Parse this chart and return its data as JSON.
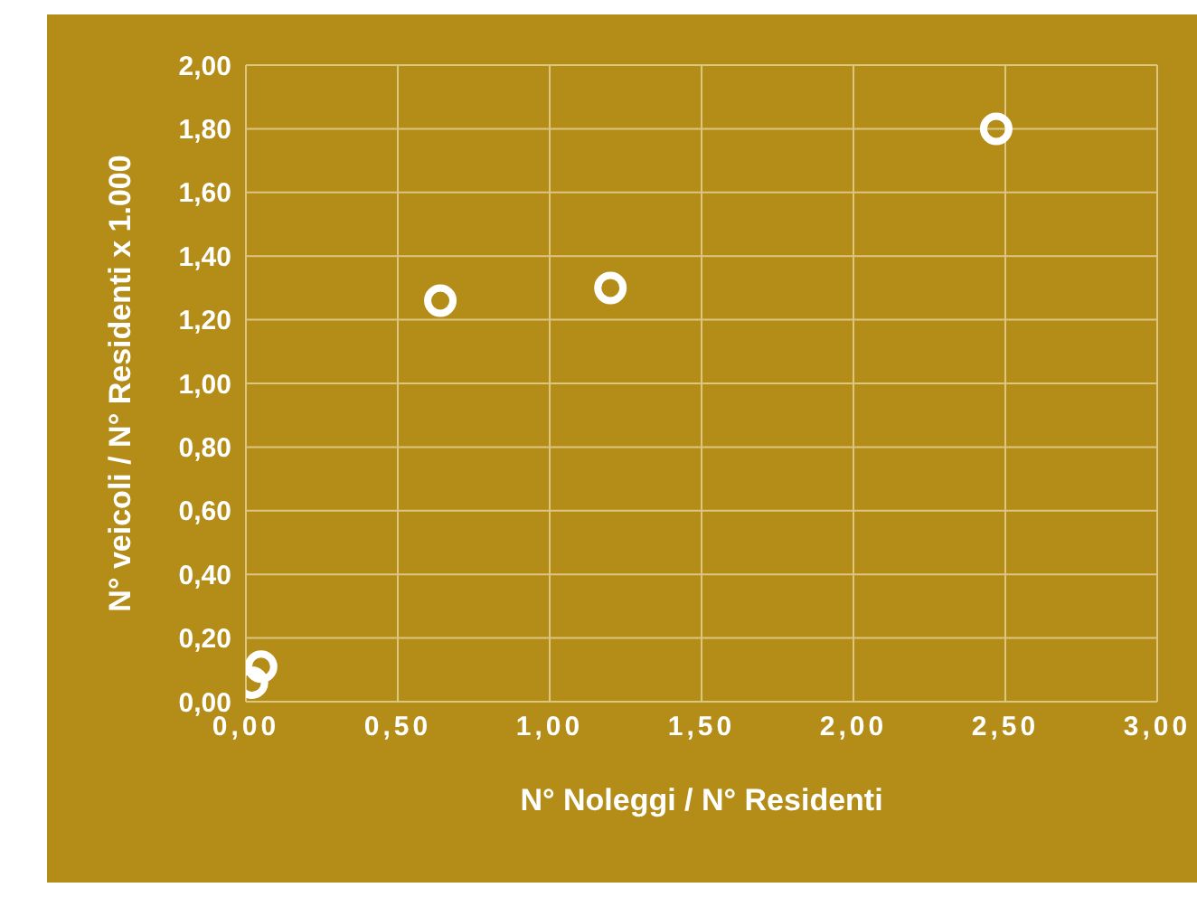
{
  "chart_data": {
    "type": "scatter",
    "xlabel": "N° Noleggi / N° Residenti",
    "ylabel": "N° veicoli / N° Residenti x 1.000",
    "x": [
      0.02,
      0.05,
      0.64,
      1.2,
      2.47
    ],
    "series": [
      {
        "color": "#ffffff",
        "values": [
          0.06,
          0.11,
          1.26,
          1.3,
          1.8
        ]
      }
    ],
    "xlim": [
      0,
      3
    ],
    "ylim": [
      0,
      2
    ],
    "xticks": [
      {
        "value": 0,
        "label": "0,00"
      },
      {
        "value": 0.5,
        "label": "0,50"
      },
      {
        "value": 1,
        "label": "1,00"
      },
      {
        "value": 1.5,
        "label": "1,50"
      },
      {
        "value": 2,
        "label": "2,00"
      },
      {
        "value": 2.5,
        "label": "2,50"
      },
      {
        "value": 3,
        "label": "3,00"
      }
    ],
    "yticks": [
      {
        "value": 0,
        "label": "0,00"
      },
      {
        "value": 0.2,
        "label": "0,20"
      },
      {
        "value": 0.4,
        "label": "0,40"
      },
      {
        "value": 0.6,
        "label": "0,60"
      },
      {
        "value": 0.8,
        "label": "0,80"
      },
      {
        "value": 1,
        "label": "1,00"
      },
      {
        "value": 1.2,
        "label": "1,20"
      },
      {
        "value": 1.4,
        "label": "1,40"
      },
      {
        "value": 1.6,
        "label": "1,60"
      },
      {
        "value": 1.8,
        "label": "1,80"
      },
      {
        "value": 2,
        "label": "2,00"
      }
    ],
    "grid": true,
    "marker": "circle",
    "legend": false
  }
}
